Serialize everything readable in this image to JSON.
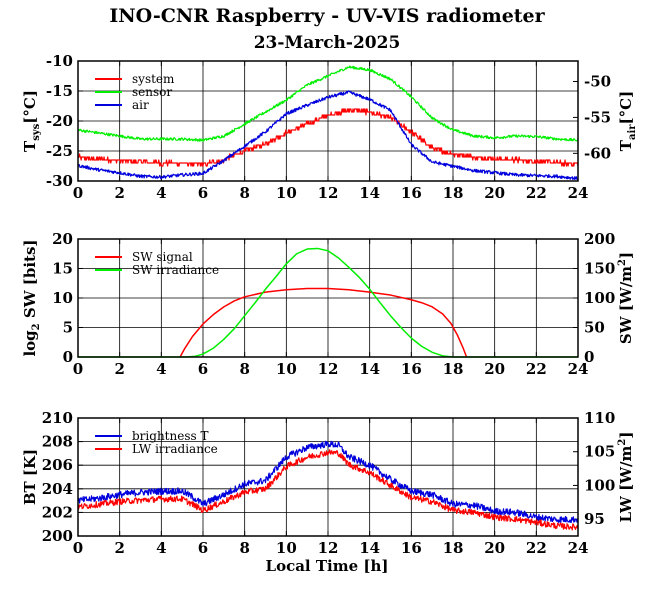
{
  "page": {
    "title": "INO-CNR Raspberry - UV-VIS radiometer",
    "subtitle": "23-March-2025",
    "xlabel": "Local Time [h]"
  },
  "chart_data": [
    {
      "type": "line",
      "x_range": [
        0,
        24
      ],
      "x_ticks": [
        "0",
        "2",
        "4",
        "6",
        "8",
        "10",
        "12",
        "14",
        "16",
        "18",
        "20",
        "22",
        "24"
      ],
      "grid": true,
      "legend_position": "top-left",
      "y_left": {
        "label": "T",
        "label_sub": "sys",
        "label_unit": "[°C]",
        "range": [
          -30,
          -10
        ],
        "ticks": [
          "-30",
          "-25",
          "-20",
          "-15",
          "-10"
        ]
      },
      "y_right": {
        "label": "T",
        "label_sub": "air",
        "label_unit": "[°C]",
        "range": [
          -63.85,
          -47.15
        ],
        "ticks": [
          "-60",
          "-55",
          "-50"
        ]
      },
      "series": [
        {
          "name": "system",
          "color": "#ff0000",
          "axis": "left",
          "x": [
            0,
            1,
            2,
            3,
            4,
            5,
            6,
            7,
            8,
            9,
            10,
            11,
            12,
            13,
            14,
            15,
            16,
            17,
            18,
            19,
            20,
            21,
            22,
            23,
            24
          ],
          "y": [
            -26,
            -26.3,
            -26.6,
            -26.8,
            -27,
            -27.1,
            -27.2,
            -26.5,
            -25,
            -23.8,
            -22,
            -20.5,
            -19,
            -18.2,
            -18.5,
            -19.5,
            -21.8,
            -24.5,
            -25.5,
            -26,
            -26.3,
            -26.5,
            -26.7,
            -27,
            -27.2
          ]
        },
        {
          "name": "sensor",
          "color": "#00ee00",
          "axis": "left",
          "x": [
            0,
            1,
            2,
            3,
            4,
            5,
            6,
            7,
            8,
            9,
            10,
            11,
            12,
            13,
            14,
            15,
            16,
            17,
            18,
            19,
            20,
            21,
            22,
            23,
            24
          ],
          "y": [
            -21.5,
            -22,
            -22.5,
            -23,
            -23,
            -23,
            -23.2,
            -22.5,
            -20.5,
            -18.5,
            -16.5,
            -14,
            -12.5,
            -11,
            -11.5,
            -13,
            -16,
            -19.5,
            -21.5,
            -22.5,
            -22.8,
            -22.5,
            -22.6,
            -23,
            -23.2
          ]
        },
        {
          "name": "air",
          "color": "#0000dd",
          "axis": "right",
          "x": [
            0,
            1,
            2,
            3,
            4,
            5,
            6,
            7,
            8,
            9,
            10,
            11,
            12,
            13,
            14,
            15,
            16,
            17,
            18,
            19,
            20,
            21,
            22,
            23,
            24
          ],
          "y": [
            -61.7,
            -62.3,
            -62.7,
            -63.2,
            -63.3,
            -63,
            -62.8,
            -61,
            -59,
            -57,
            -54.5,
            -53.3,
            -52.2,
            -51.5,
            -52.5,
            -54,
            -58.8,
            -61.2,
            -61.8,
            -62.4,
            -62.7,
            -63,
            -63.1,
            -63.2,
            -63.5
          ]
        }
      ]
    },
    {
      "type": "line",
      "x_range": [
        0,
        24
      ],
      "x_ticks": [
        "0",
        "2",
        "4",
        "6",
        "8",
        "10",
        "12",
        "14",
        "16",
        "18",
        "20",
        "22",
        "24"
      ],
      "grid": true,
      "legend_position": "top-left",
      "y_left": {
        "label": "log",
        "label_sub": "2",
        "label_unit": " SW [bits]",
        "range": [
          0,
          20
        ],
        "ticks": [
          "0",
          "5",
          "10",
          "15",
          "20"
        ]
      },
      "y_right": {
        "label": "SW [W/m",
        "label_sub": "",
        "label_sup": "2",
        "label_unit": "]",
        "range": [
          0,
          200
        ],
        "ticks": [
          "0",
          "50",
          "100",
          "150",
          "200"
        ]
      },
      "series": [
        {
          "name": "SW signal",
          "color": "#ff0000",
          "axis": "left",
          "x": [
            4.9,
            5.1,
            5.5,
            6,
            6.5,
            7,
            7.5,
            8,
            9,
            10,
            11,
            12,
            13,
            14,
            15,
            16,
            16.5,
            17,
            17.5,
            17.9,
            18.2,
            18.5,
            18.65
          ],
          "y": [
            0,
            1.3,
            3.5,
            5.6,
            7.2,
            8.5,
            9.5,
            10.2,
            11,
            11.4,
            11.6,
            11.6,
            11.4,
            11,
            10.5,
            9.7,
            9.2,
            8.5,
            7.3,
            5.7,
            3.8,
            1.4,
            0
          ]
        },
        {
          "name": "SW irradiance",
          "color": "#00ee00",
          "axis": "right",
          "x": [
            0,
            5.2,
            5.6,
            6,
            6.5,
            7,
            7.5,
            8,
            8.5,
            9,
            9.5,
            10,
            10.5,
            11,
            11.5,
            12,
            12.5,
            13,
            13.5,
            14,
            14.5,
            15,
            15.5,
            16,
            16.5,
            17,
            17.5,
            18,
            18.5,
            24
          ],
          "y": [
            0,
            0,
            1,
            5,
            15,
            30,
            48,
            70,
            92,
            115,
            136,
            158,
            175,
            183,
            184,
            180,
            168,
            152,
            135,
            115,
            92,
            70,
            50,
            32,
            18,
            8,
            2,
            0,
            0,
            0
          ]
        }
      ]
    },
    {
      "type": "line",
      "x_range": [
        0,
        24
      ],
      "x_ticks": [
        "0",
        "2",
        "4",
        "6",
        "8",
        "10",
        "12",
        "14",
        "16",
        "18",
        "20",
        "22",
        "24"
      ],
      "grid": true,
      "legend_position": "top-left",
      "y_left": {
        "label": "BT [K]",
        "label_sub": "",
        "label_unit": "",
        "range": [
          200,
          210
        ],
        "ticks": [
          "200",
          "202",
          "204",
          "206",
          "208",
          "210"
        ]
      },
      "y_right": {
        "label": "LW [W/m",
        "label_sub": "",
        "label_sup": "2",
        "label_unit": "]",
        "range": [
          92.5,
          110
        ],
        "ticks": [
          "95",
          "100",
          "105",
          "110"
        ]
      },
      "series": [
        {
          "name": "brightness T",
          "color": "#0000dd",
          "axis": "left",
          "x": [
            0,
            1,
            2,
            3,
            4,
            5,
            5.5,
            6,
            7,
            8,
            9,
            10,
            11,
            12,
            12.5,
            13,
            14,
            15,
            16,
            17,
            18,
            19,
            20,
            21,
            22,
            23,
            24
          ],
          "y": [
            203,
            203.2,
            203.5,
            203.7,
            203.8,
            203.8,
            203.3,
            202.7,
            203.5,
            204.4,
            204.7,
            206.7,
            207.5,
            207.8,
            207.7,
            206.7,
            206,
            204.8,
            203.8,
            203.5,
            202.7,
            202.6,
            202.1,
            202,
            201.6,
            201.4,
            201.4
          ]
        },
        {
          "name": "LW irradiance",
          "color": "#ff0000",
          "axis": "right",
          "x": [
            0,
            1,
            2,
            3,
            4,
            5,
            5.5,
            6,
            7,
            8,
            9,
            10,
            11,
            12,
            12.5,
            13,
            14,
            15,
            16,
            17,
            18,
            19,
            20,
            21,
            22,
            23,
            24
          ],
          "y": [
            96.8,
            97.2,
            97.6,
            97.8,
            98,
            98,
            97.2,
            96.3,
            97.6,
            99,
            99.5,
            102.8,
            104.2,
            104.9,
            104.8,
            103.1,
            101.9,
            100,
            98.2,
            97.6,
            96.3,
            96,
            95.3,
            95,
            94.5,
            94,
            93.8
          ]
        }
      ]
    }
  ]
}
